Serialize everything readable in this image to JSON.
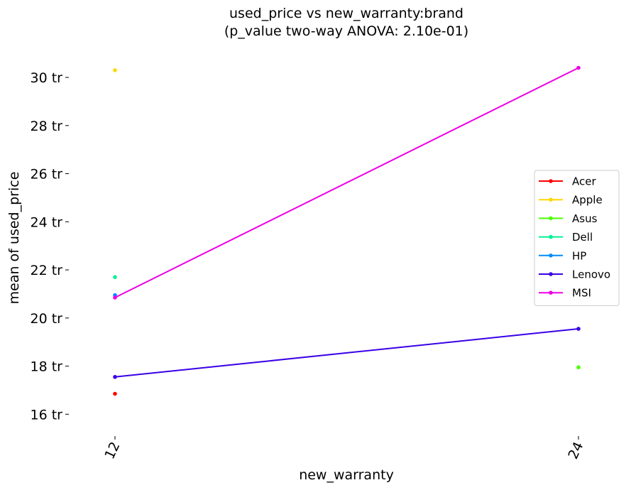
{
  "chart_data": {
    "type": "line",
    "title": "used_price vs new_warranty:brand",
    "subtitle": "(p_value two-way ANOVA: 2.10e-01)",
    "xlabel": "new_warranty",
    "ylabel": "mean of used_price",
    "categories": [
      "12",
      "24"
    ],
    "y_ticks": [
      16,
      18,
      20,
      22,
      24,
      26,
      28,
      30
    ],
    "y_tick_suffix": " tr",
    "ylim": [
      15.3,
      31.3
    ],
    "grid": false,
    "legend_position": "right",
    "series": [
      {
        "name": "Acer",
        "color": "#ff0000",
        "values": [
          16.85,
          null
        ]
      },
      {
        "name": "Apple",
        "color": "#ffd700",
        "values": [
          30.3,
          null
        ]
      },
      {
        "name": "Asus",
        "color": "#4dff00",
        "values": [
          null,
          17.95
        ]
      },
      {
        "name": "Dell",
        "color": "#00f294",
        "values": [
          21.7,
          null
        ]
      },
      {
        "name": "HP",
        "color": "#008cff",
        "values": [
          20.95,
          null
        ]
      },
      {
        "name": "Lenovo",
        "color": "#3a00e6",
        "values": [
          17.55,
          19.55
        ]
      },
      {
        "name": "MSI",
        "color": "#ee00e6",
        "values": [
          20.85,
          30.4
        ]
      }
    ]
  }
}
